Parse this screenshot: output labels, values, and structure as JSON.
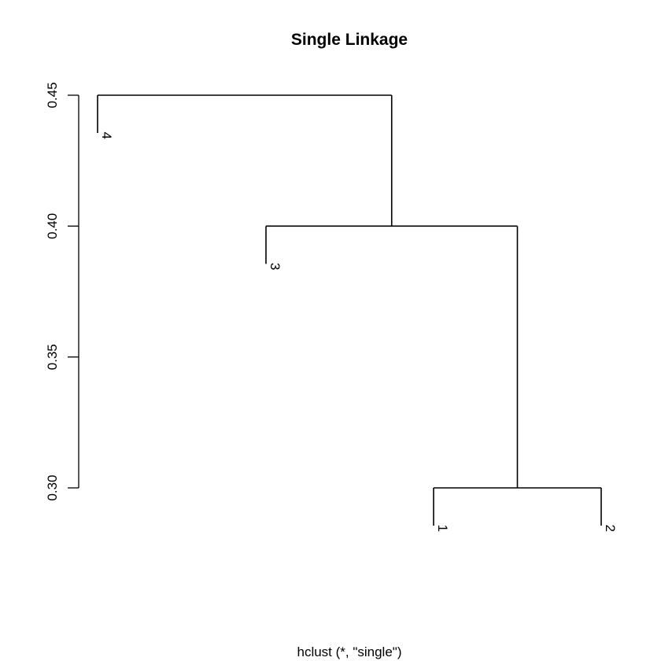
{
  "chart_data": {
    "type": "dendrogram",
    "title": "Single Linkage",
    "xlabel": "hclust (*, \"single\")",
    "ylabel": "",
    "ylim": [
      0.3,
      0.45
    ],
    "yticks": [
      "0.30",
      "0.35",
      "0.40",
      "0.45"
    ],
    "leaves_order": [
      "4",
      "3",
      "1",
      "2"
    ],
    "merges": [
      {
        "children": [
          "1",
          "2"
        ],
        "height": 0.3
      },
      {
        "children": [
          "3",
          "(1,2)"
        ],
        "height": 0.4
      },
      {
        "children": [
          "4",
          "((1,2),3)"
        ],
        "height": 0.45
      }
    ],
    "grid": false
  }
}
